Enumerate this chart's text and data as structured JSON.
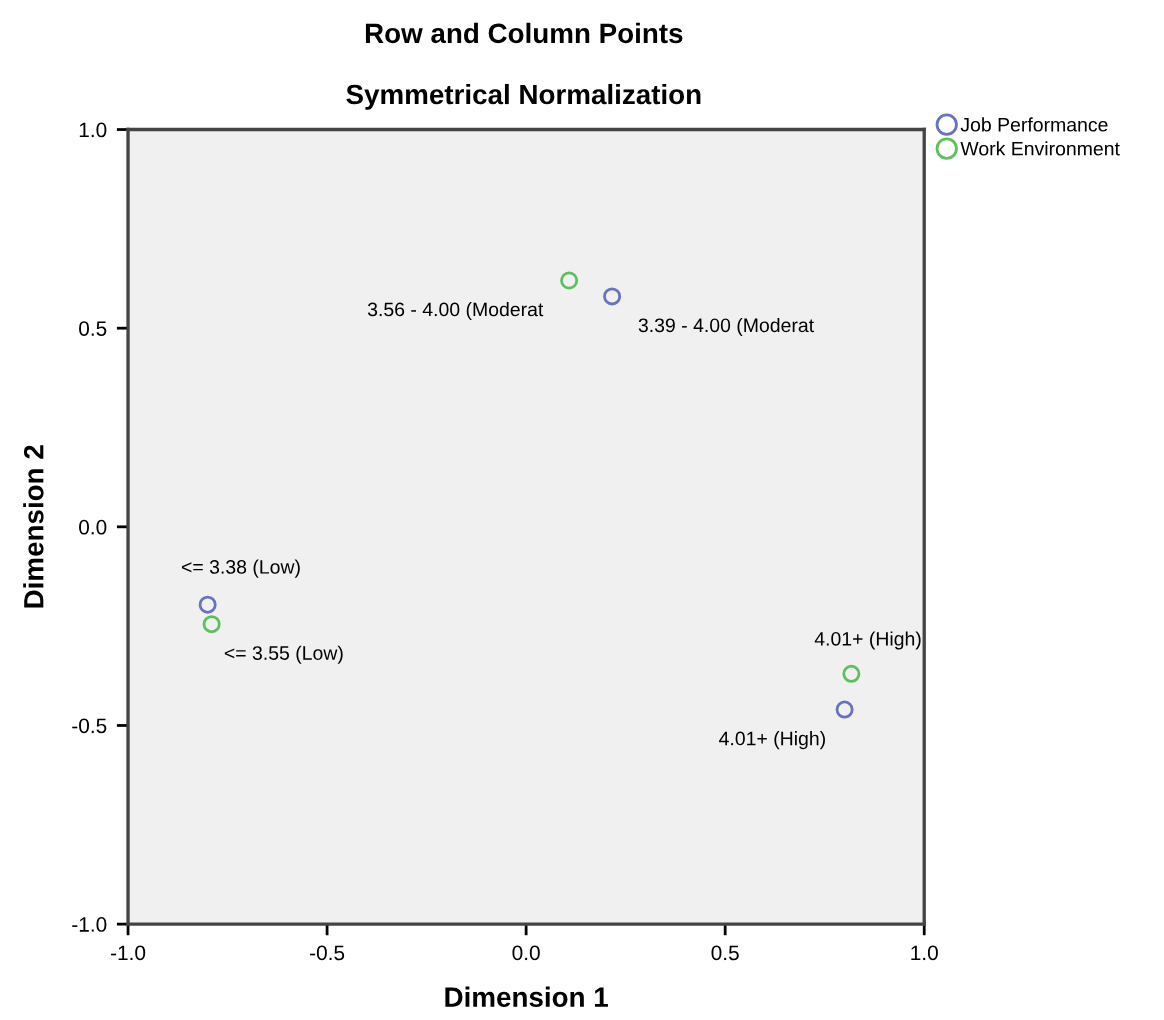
{
  "chart_data": {
    "type": "scatter",
    "title": "Row and Column Points",
    "subtitle": "Symmetrical Normalization",
    "xlabel": "Dimension 1",
    "ylabel": "Dimension 2",
    "series": [
      {
        "name": "Job Performance",
        "color": "#6673c0",
        "x": [
          -0.8,
          0.216,
          0.8
        ],
        "values": [
          -0.196,
          0.58,
          -0.46
        ]
      },
      {
        "name": "Work Environment",
        "color": "#5cc15c",
        "x": [
          -0.79,
          0.108,
          0.817
        ],
        "values": [
          -0.245,
          0.62,
          -0.37
        ]
      }
    ],
    "annotations": [
      {
        "text": "<= 3.38 (Low)",
        "x": -0.8,
        "y": -0.196
      },
      {
        "text": "3.39 - 4.00 (Moderat",
        "x": 0.216,
        "y": 0.58
      },
      {
        "text": "4.01+ (High)",
        "x": 0.8,
        "y": -0.46
      },
      {
        "text": "<= 3.55 (Low)",
        "x": -0.79,
        "y": -0.245
      },
      {
        "text": "3.56 - 4.00 (Moderat",
        "x": 0.108,
        "y": 0.62
      },
      {
        "text": "4.01+ (High)",
        "x": 0.817,
        "y": -0.37
      }
    ],
    "xlim": [
      -1.0,
      1.0
    ],
    "ylim": [
      -1.0,
      1.0
    ],
    "xticks": [
      {
        "value": -1.0,
        "label": "-1.0"
      },
      {
        "value": -0.5,
        "label": "-0.5"
      },
      {
        "value": 0.0,
        "label": "0.0"
      },
      {
        "value": 0.5,
        "label": "0.5"
      },
      {
        "value": 1.0,
        "label": "1.0"
      }
    ],
    "yticks": [
      {
        "value": -1.0,
        "label": "-1.0"
      },
      {
        "value": -0.5,
        "label": "-0.5"
      },
      {
        "value": 0.0,
        "label": "0.0"
      },
      {
        "value": 0.5,
        "label": "0.5"
      },
      {
        "value": 1.0,
        "label": "1.0"
      }
    ],
    "grid": false,
    "legend": "top right",
    "marker": "circle"
  }
}
